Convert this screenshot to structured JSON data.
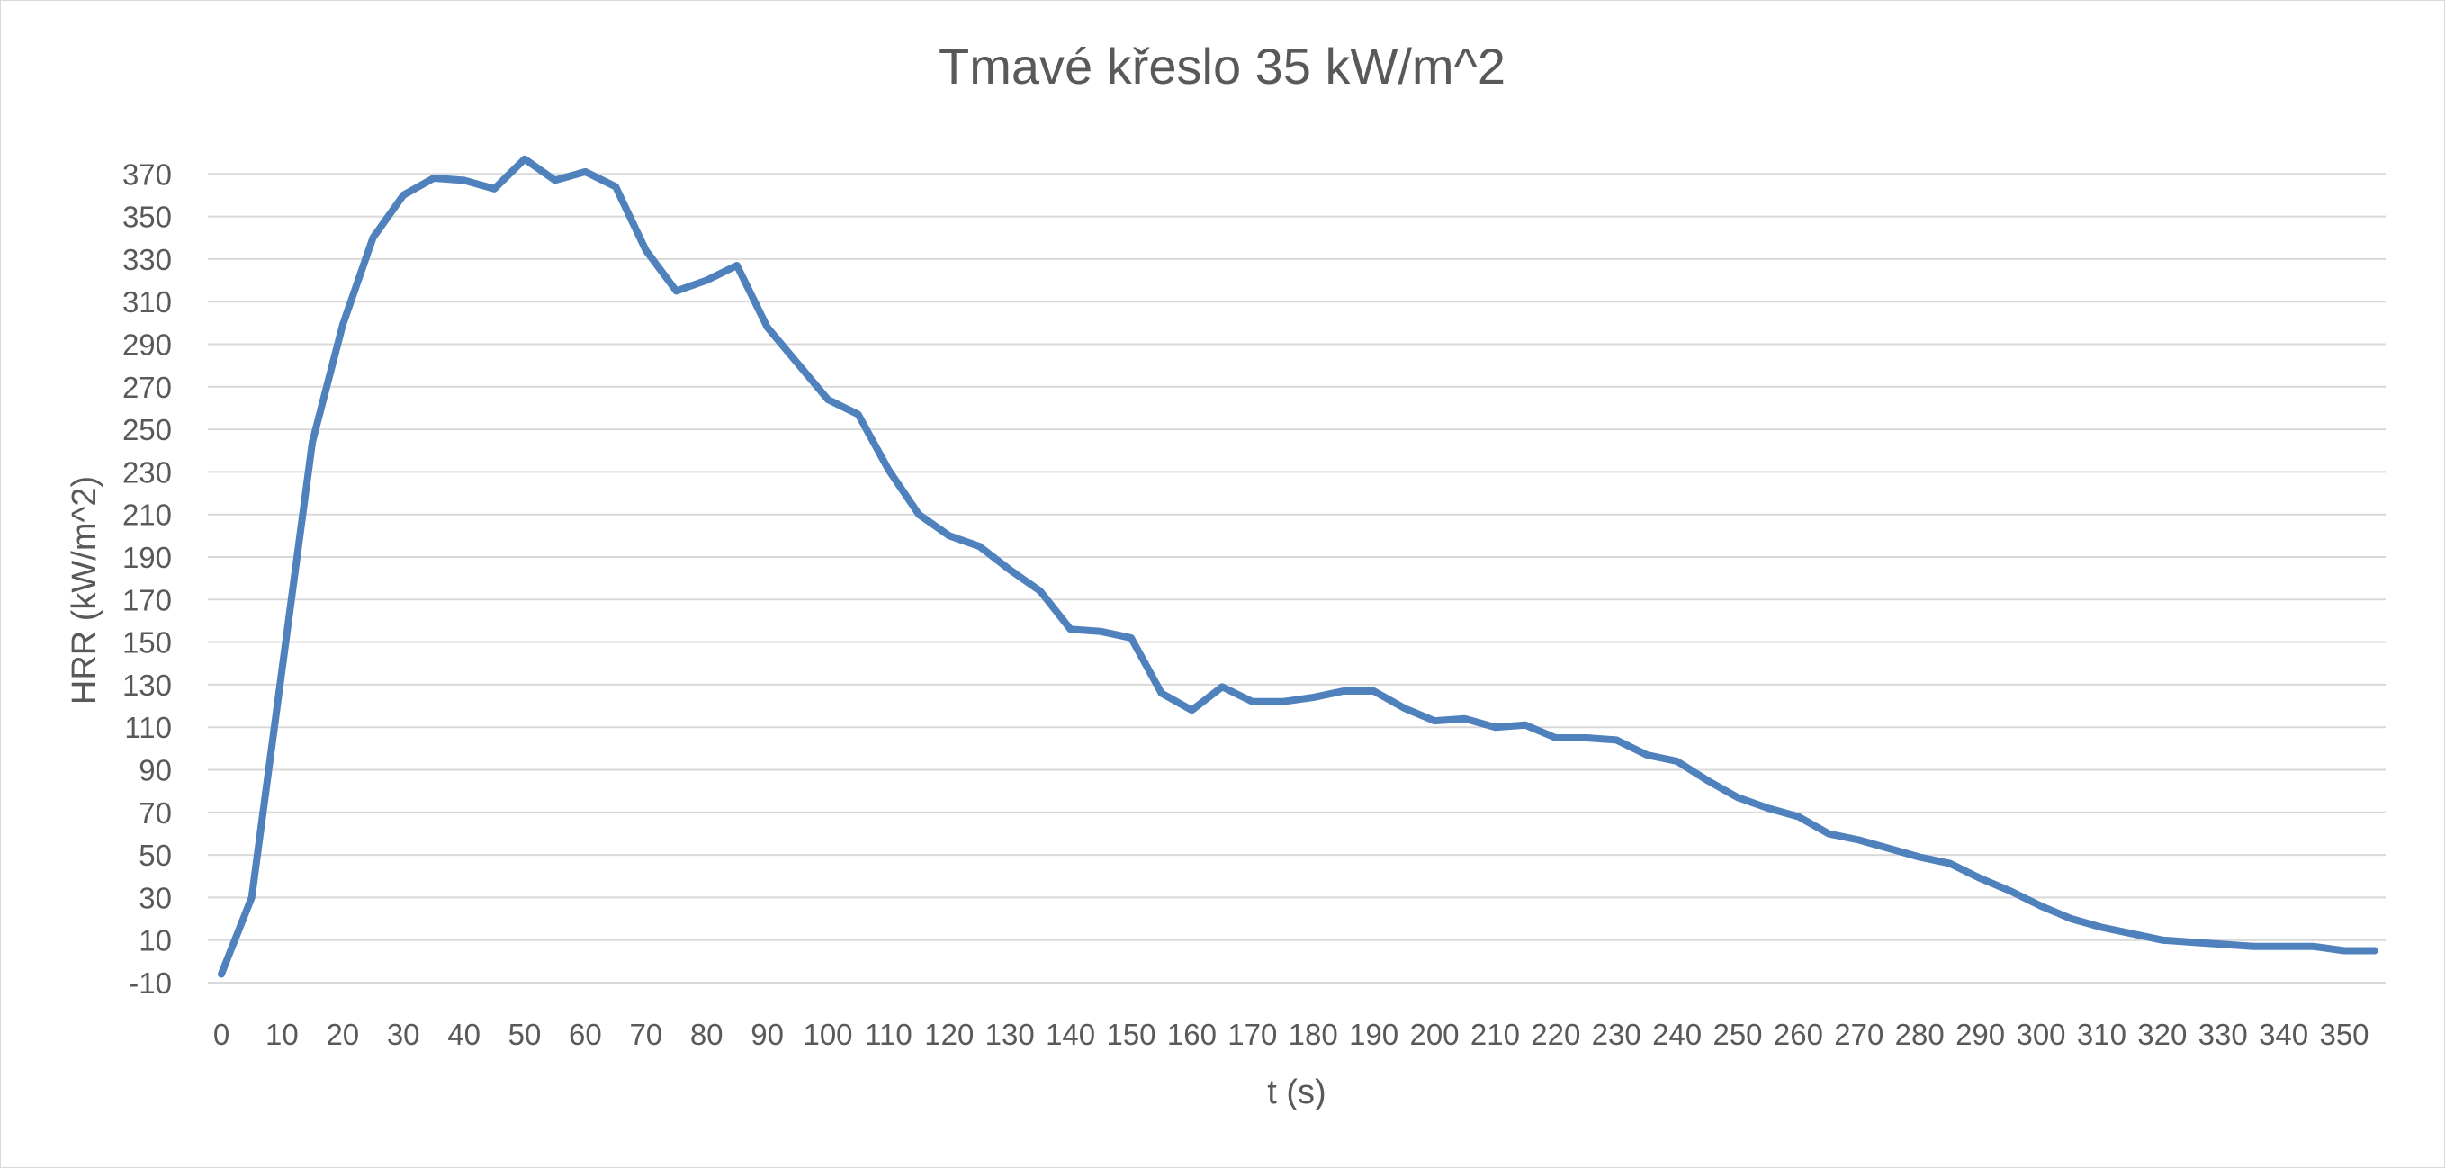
{
  "chart_data": {
    "type": "line",
    "title": "Tmavé křeslo 35 kW/m^2",
    "xlabel": "t (s)",
    "ylabel": "HRR (kW/m^2)",
    "xlim": [
      0,
      355
    ],
    "ylim": [
      -10,
      380
    ],
    "x_ticks": [
      0,
      10,
      20,
      30,
      40,
      50,
      60,
      70,
      80,
      90,
      100,
      110,
      120,
      130,
      140,
      150,
      160,
      170,
      180,
      190,
      200,
      210,
      220,
      230,
      240,
      250,
      260,
      270,
      280,
      290,
      300,
      310,
      320,
      330,
      340,
      350
    ],
    "y_ticks": [
      -10,
      10,
      30,
      50,
      70,
      90,
      110,
      130,
      150,
      170,
      190,
      210,
      230,
      250,
      270,
      290,
      310,
      330,
      350,
      370
    ],
    "grid": true,
    "legend": "none",
    "series": [
      {
        "color": "#4F81BD",
        "x": [
          0,
          5,
          10,
          15,
          20,
          25,
          30,
          35,
          40,
          45,
          50,
          55,
          60,
          65,
          70,
          75,
          80,
          85,
          90,
          95,
          100,
          105,
          110,
          115,
          120,
          125,
          130,
          135,
          140,
          145,
          150,
          155,
          160,
          165,
          170,
          175,
          180,
          185,
          190,
          195,
          200,
          205,
          210,
          215,
          220,
          225,
          230,
          235,
          240,
          245,
          250,
          255,
          260,
          265,
          270,
          275,
          280,
          285,
          290,
          295,
          300,
          305,
          310,
          315,
          320,
          325,
          330,
          335,
          340,
          345,
          350,
          355
        ],
        "values": [
          -6,
          30,
          137,
          244,
          299,
          340,
          360,
          368,
          367,
          363,
          377,
          367,
          371,
          364,
          334,
          315,
          320,
          327,
          298,
          281,
          264,
          257,
          231,
          210,
          200,
          195,
          184,
          174,
          156,
          155,
          152,
          126,
          118,
          129,
          122,
          122,
          124,
          127,
          127,
          119,
          113,
          114,
          110,
          111,
          105,
          105,
          104,
          97,
          94,
          85,
          77,
          72,
          68,
          60,
          57,
          53,
          49,
          46,
          39,
          33,
          26,
          20,
          16,
          13,
          10,
          9,
          8,
          7,
          7,
          7,
          5,
          5
        ]
      }
    ]
  }
}
